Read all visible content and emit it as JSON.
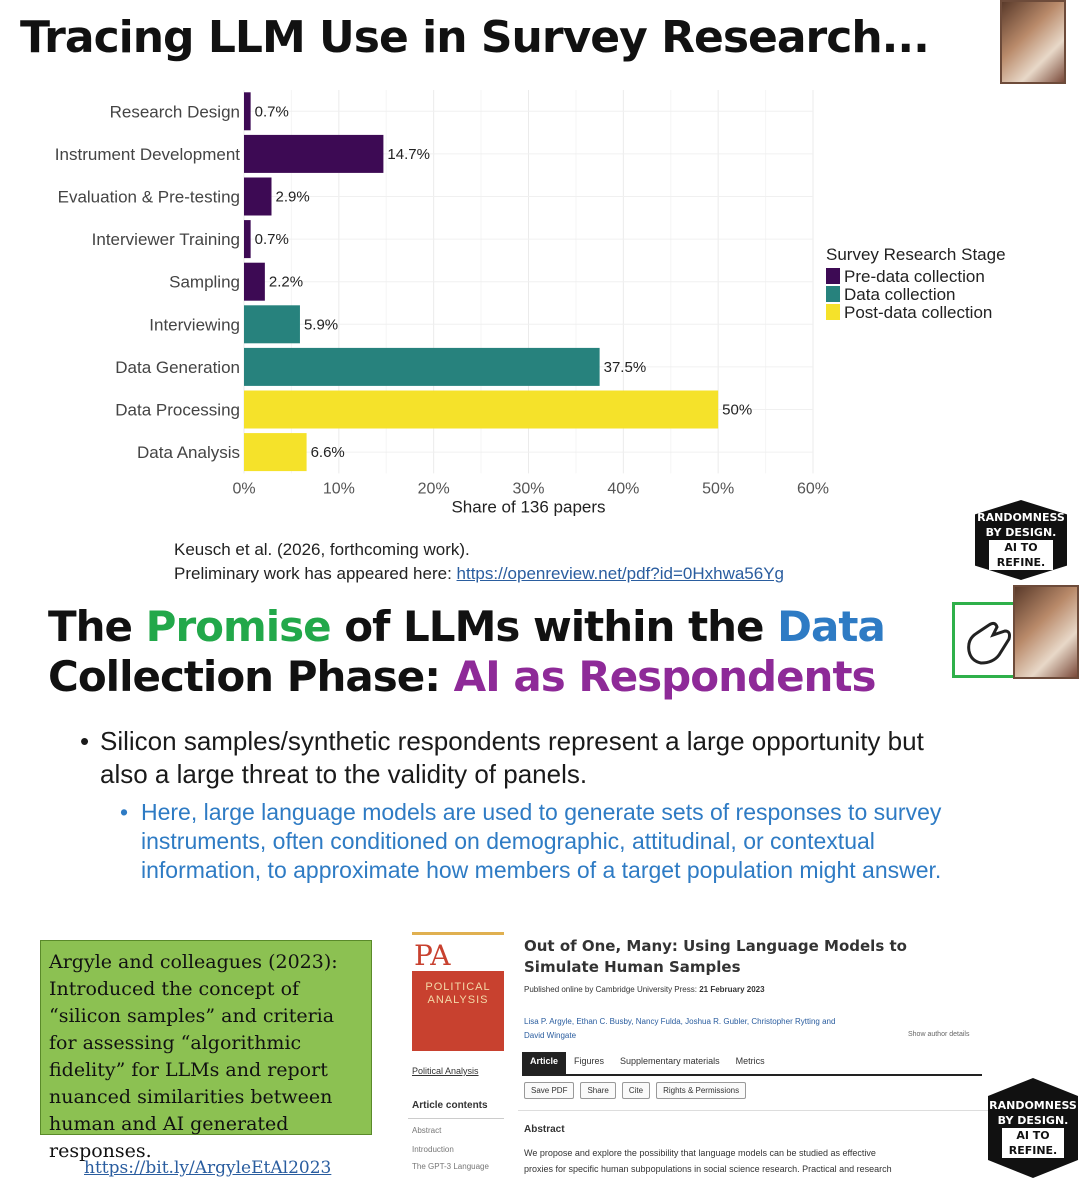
{
  "slide1": {
    "title": "Tracing LLM Use in Survey Research...",
    "citation_line1": "Keusch et al. (2026, forthcoming work).",
    "citation_line2_prefix": "Preliminary work has appeared here: ",
    "citation_link": "https://openreview.net/pdf?id=0Hxhwa56Yg"
  },
  "chart_data": {
    "type": "bar",
    "orientation": "horizontal",
    "categories": [
      "Research Design",
      "Instrument Development",
      "Evaluation & Pre-testing",
      "Interviewer Training",
      "Sampling",
      "Interviewing",
      "Data Generation",
      "Data Processing",
      "Data Analysis"
    ],
    "values": [
      0.7,
      14.7,
      2.9,
      0.7,
      2.2,
      5.9,
      37.5,
      50,
      6.6
    ],
    "value_labels": [
      "0.7%",
      "14.7%",
      "2.9%",
      "0.7%",
      "2.2%",
      "5.9%",
      "37.5%",
      "50%",
      "6.6%"
    ],
    "stage": [
      "Pre-data collection",
      "Pre-data collection",
      "Pre-data collection",
      "Pre-data collection",
      "Pre-data collection",
      "Data collection",
      "Data collection",
      "Post-data collection",
      "Post-data collection"
    ],
    "xlabel": "Share of 136 papers",
    "xlim": [
      0,
      60
    ],
    "xticks": [
      0,
      10,
      20,
      30,
      40,
      50,
      60
    ],
    "xtick_labels": [
      "0%",
      "10%",
      "20%",
      "30%",
      "40%",
      "50%",
      "60%"
    ],
    "legend_title": "Survey Research Stage",
    "legend": [
      {
        "name": "Pre-data collection",
        "color": "#3d0a54"
      },
      {
        "name": "Data collection",
        "color": "#27827d"
      },
      {
        "name": "Post-data collection",
        "color": "#f5e22a"
      }
    ],
    "legend_position": "right",
    "grid": true
  },
  "badge": {
    "line1": "RANDOMNESS",
    "line2": "BY DESIGN.",
    "line3": "AI TO REFINE."
  },
  "slide2": {
    "title_l1_a": "The ",
    "title_l1_b": "Promise",
    "title_l1_c": " of LLMs within the ",
    "title_l1_d": "Data",
    "title_l2_a": "Collection Phase: ",
    "title_l2_b": "AI as Respondents",
    "bullet1": "Silicon samples/synthetic respondents represent a large opportunity but also a large threat to the validity of panels.",
    "bullet2": "Here, large language models are used to generate sets of responses to survey instruments, often conditioned on demographic, attitudinal, or contextual information, to approximate how members of a target population might answer.",
    "box_text": "Argyle and colleagues (2023): Introduced the concept of “silicon samples” and criteria for assessing “algorithmic fidelity” for LLMs and report nuanced similarities between human and AI generated responses.",
    "box_link": "https://bit.ly/ArgyleEtAl2023"
  },
  "paper": {
    "journal_abbr": "PA",
    "journal_name": "POLITICAL ANALYSIS",
    "journal_link": "Political Analysis",
    "contents_heading": "Article contents",
    "contents": [
      "Abstract",
      "Introduction",
      "The GPT-3 Language"
    ],
    "title": "Out of One, Many: Using Language Models to Simulate Human Samples",
    "published_prefix": "Published online by Cambridge University Press: ",
    "published_date": "21 February 2023",
    "authors": "Lisa P. Argyle, Ethan C. Busby, Nancy Fulda, Joshua R. Gubler, Christopher Rytting and",
    "authors2": "David Wingate",
    "show_details": "Show author details",
    "tabs": [
      "Article",
      "Figures",
      "Supplementary materials",
      "Metrics"
    ],
    "buttons": [
      "Save PDF",
      "Share",
      "Cite",
      "Rights & Permissions"
    ],
    "abstract_heading": "Abstract",
    "abstract_l1": "We propose and explore the possibility that language models can be studied as effective",
    "abstract_l2": "proxies for specific human subpopulations in social science research. Practical and research"
  }
}
